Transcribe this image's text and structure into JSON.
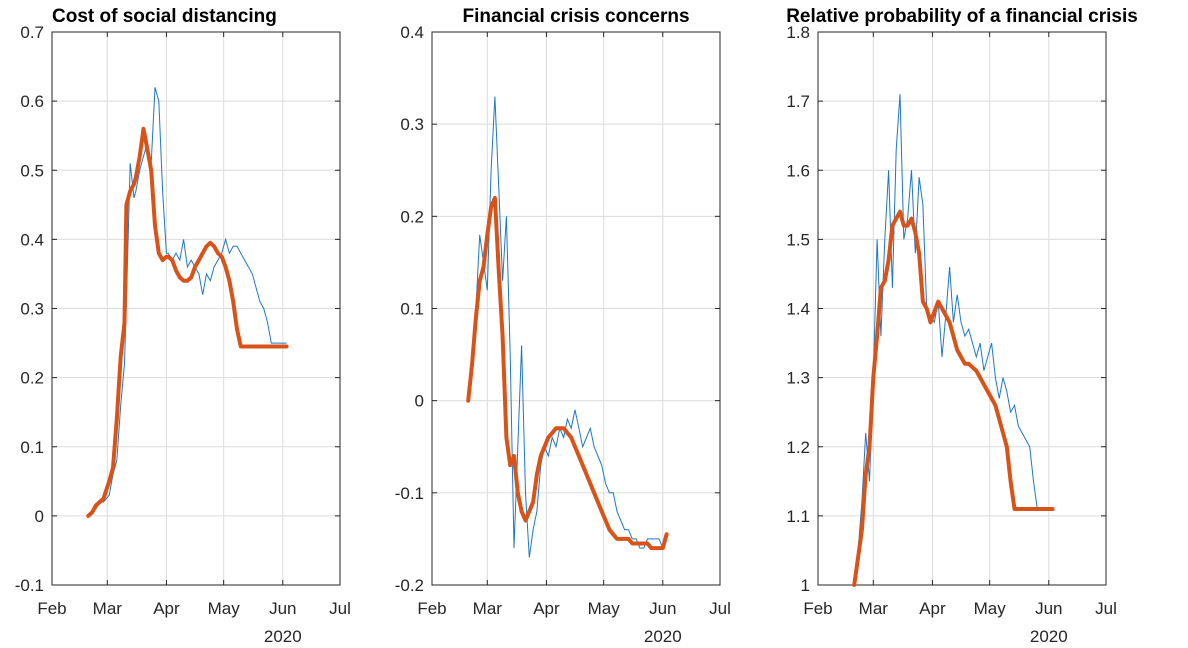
{
  "chart_data": [
    {
      "type": "line",
      "title": "Cost of social distancing",
      "xlabel": "",
      "ylabel": "",
      "x_ticks": [
        "Feb",
        "Mar",
        "Apr",
        "May",
        "Jun",
        "Jul"
      ],
      "x_year": "2020",
      "xlim": [
        "2020-02-01",
        "2020-07-01"
      ],
      "ylim": [
        -0.1,
        0.7
      ],
      "y_ticks": [
        "-0.1",
        "0",
        "0.1",
        "0.2",
        "0.3",
        "0.4",
        "0.5",
        "0.6",
        "0.7"
      ],
      "grid": true,
      "colors": {
        "raw": "#1f77c4",
        "smoothed": "#d95319"
      },
      "series": [
        {
          "role": "raw",
          "x": [
            "2020-02-20",
            "2020-02-22",
            "2020-02-24",
            "2020-02-26",
            "2020-02-28",
            "2020-03-02",
            "2020-03-04",
            "2020-03-06",
            "2020-03-08",
            "2020-03-10",
            "2020-03-11",
            "2020-03-13",
            "2020-03-15",
            "2020-03-16",
            "2020-03-18",
            "2020-03-20",
            "2020-03-22",
            "2020-03-24",
            "2020-03-26",
            "2020-03-28",
            "2020-03-30",
            "2020-04-01",
            "2020-04-02",
            "2020-04-04",
            "2020-04-06",
            "2020-04-08",
            "2020-04-10",
            "2020-04-12",
            "2020-04-14",
            "2020-04-16",
            "2020-04-18",
            "2020-04-20",
            "2020-04-22",
            "2020-04-24",
            "2020-04-26",
            "2020-04-28",
            "2020-04-30",
            "2020-05-02",
            "2020-05-04",
            "2020-05-06",
            "2020-05-08",
            "2020-05-10",
            "2020-05-12",
            "2020-05-14",
            "2020-05-16",
            "2020-05-18",
            "2020-05-20",
            "2020-05-22",
            "2020-05-24",
            "2020-05-26",
            "2020-05-28",
            "2020-05-30",
            "2020-06-01",
            "2020-06-03"
          ],
          "values": [
            0.0,
            0.005,
            0.01,
            0.02,
            0.02,
            0.03,
            0.06,
            0.08,
            0.16,
            0.22,
            0.31,
            0.51,
            0.46,
            0.47,
            0.5,
            0.52,
            0.54,
            0.51,
            0.62,
            0.6,
            0.47,
            0.38,
            0.38,
            0.37,
            0.38,
            0.37,
            0.4,
            0.36,
            0.37,
            0.36,
            0.35,
            0.32,
            0.35,
            0.34,
            0.36,
            0.37,
            0.38,
            0.4,
            0.38,
            0.39,
            0.39,
            0.38,
            0.37,
            0.36,
            0.35,
            0.33,
            0.31,
            0.3,
            0.28,
            0.25,
            0.25,
            0.25,
            0.25,
            0.25
          ]
        },
        {
          "role": "smoothed",
          "x": [
            "2020-02-20",
            "2020-02-22",
            "2020-02-24",
            "2020-02-26",
            "2020-02-28",
            "2020-03-02",
            "2020-03-04",
            "2020-03-06",
            "2020-03-08",
            "2020-03-10",
            "2020-03-11",
            "2020-03-13",
            "2020-03-15",
            "2020-03-16",
            "2020-03-18",
            "2020-03-20",
            "2020-03-22",
            "2020-03-24",
            "2020-03-26",
            "2020-03-28",
            "2020-03-30",
            "2020-04-01",
            "2020-04-02",
            "2020-04-04",
            "2020-04-06",
            "2020-04-08",
            "2020-04-10",
            "2020-04-12",
            "2020-04-14",
            "2020-04-16",
            "2020-04-18",
            "2020-04-20",
            "2020-04-22",
            "2020-04-24",
            "2020-04-26",
            "2020-04-28",
            "2020-04-30",
            "2020-05-02",
            "2020-05-04",
            "2020-05-06",
            "2020-05-08",
            "2020-05-10",
            "2020-05-12",
            "2020-05-14",
            "2020-05-16",
            "2020-05-18",
            "2020-05-20",
            "2020-05-22",
            "2020-05-24",
            "2020-05-26",
            "2020-05-28",
            "2020-05-30",
            "2020-06-01",
            "2020-06-03"
          ],
          "values": [
            0.0,
            0.005,
            0.015,
            0.02,
            0.025,
            0.05,
            0.07,
            0.14,
            0.23,
            0.28,
            0.45,
            0.47,
            0.48,
            0.49,
            0.52,
            0.56,
            0.53,
            0.5,
            0.42,
            0.38,
            0.37,
            0.375,
            0.375,
            0.37,
            0.355,
            0.345,
            0.34,
            0.34,
            0.345,
            0.36,
            0.37,
            0.38,
            0.39,
            0.395,
            0.39,
            0.38,
            0.375,
            0.36,
            0.34,
            0.31,
            0.27,
            0.245,
            0.245,
            0.245,
            0.245,
            0.245,
            0.245,
            0.245,
            0.245,
            0.245,
            0.245,
            0.245,
            0.245,
            0.245
          ]
        }
      ]
    },
    {
      "type": "line",
      "title": "Financial crisis concerns",
      "xlabel": "",
      "ylabel": "",
      "x_ticks": [
        "Feb",
        "Mar",
        "Apr",
        "May",
        "Jun",
        "Jul"
      ],
      "x_year": "2020",
      "xlim": [
        "2020-02-01",
        "2020-07-01"
      ],
      "ylim": [
        -0.2,
        0.4
      ],
      "y_ticks": [
        "-0.2",
        "-0.1",
        "0",
        "0.1",
        "0.2",
        "0.3",
        "0.4"
      ],
      "grid": true,
      "colors": {
        "raw": "#1f77c4",
        "smoothed": "#d95319"
      },
      "series": [
        {
          "role": "raw",
          "x": [
            "2020-02-20",
            "2020-02-22",
            "2020-02-24",
            "2020-02-26",
            "2020-02-28",
            "2020-03-01",
            "2020-03-03",
            "2020-03-05",
            "2020-03-07",
            "2020-03-09",
            "2020-03-11",
            "2020-03-13",
            "2020-03-15",
            "2020-03-17",
            "2020-03-19",
            "2020-03-21",
            "2020-03-23",
            "2020-03-25",
            "2020-03-27",
            "2020-03-29",
            "2020-03-31",
            "2020-04-02",
            "2020-04-04",
            "2020-04-06",
            "2020-04-08",
            "2020-04-10",
            "2020-04-12",
            "2020-04-14",
            "2020-04-16",
            "2020-04-18",
            "2020-04-20",
            "2020-04-22",
            "2020-04-24",
            "2020-04-26",
            "2020-04-28",
            "2020-04-30",
            "2020-05-02",
            "2020-05-04",
            "2020-05-06",
            "2020-05-08",
            "2020-05-10",
            "2020-05-12",
            "2020-05-14",
            "2020-05-16",
            "2020-05-18",
            "2020-05-20",
            "2020-05-22",
            "2020-05-24",
            "2020-05-26",
            "2020-05-28",
            "2020-05-30",
            "2020-06-01",
            "2020-06-03"
          ],
          "values": [
            0.0,
            0.05,
            0.1,
            0.18,
            0.15,
            0.12,
            0.25,
            0.33,
            0.23,
            0.13,
            0.2,
            0.05,
            -0.16,
            -0.05,
            0.06,
            -0.1,
            -0.17,
            -0.14,
            -0.12,
            -0.07,
            -0.05,
            -0.06,
            -0.04,
            -0.05,
            -0.03,
            -0.04,
            -0.02,
            -0.03,
            -0.01,
            -0.03,
            -0.05,
            -0.04,
            -0.03,
            -0.05,
            -0.06,
            -0.07,
            -0.09,
            -0.1,
            -0.1,
            -0.12,
            -0.13,
            -0.14,
            -0.14,
            -0.15,
            -0.15,
            -0.16,
            -0.16,
            -0.15,
            -0.15,
            -0.15,
            -0.15,
            -0.16,
            -0.15
          ]
        },
        {
          "role": "smoothed",
          "x": [
            "2020-02-20",
            "2020-02-22",
            "2020-02-24",
            "2020-02-26",
            "2020-02-28",
            "2020-03-01",
            "2020-03-03",
            "2020-03-05",
            "2020-03-07",
            "2020-03-09",
            "2020-03-11",
            "2020-03-13",
            "2020-03-15",
            "2020-03-17",
            "2020-03-19",
            "2020-03-21",
            "2020-03-23",
            "2020-03-25",
            "2020-03-27",
            "2020-03-29",
            "2020-03-31",
            "2020-04-02",
            "2020-04-04",
            "2020-04-06",
            "2020-04-08",
            "2020-04-10",
            "2020-04-12",
            "2020-04-14",
            "2020-04-16",
            "2020-04-18",
            "2020-04-20",
            "2020-04-22",
            "2020-04-24",
            "2020-04-26",
            "2020-04-28",
            "2020-04-30",
            "2020-05-02",
            "2020-05-04",
            "2020-05-06",
            "2020-05-08",
            "2020-05-10",
            "2020-05-12",
            "2020-05-14",
            "2020-05-16",
            "2020-05-18",
            "2020-05-20",
            "2020-05-22",
            "2020-05-24",
            "2020-05-26",
            "2020-05-28",
            "2020-05-30",
            "2020-06-01",
            "2020-06-03"
          ],
          "values": [
            0.0,
            0.04,
            0.09,
            0.13,
            0.145,
            0.18,
            0.21,
            0.22,
            0.14,
            0.07,
            -0.04,
            -0.07,
            -0.06,
            -0.1,
            -0.12,
            -0.13,
            -0.12,
            -0.11,
            -0.08,
            -0.06,
            -0.05,
            -0.04,
            -0.035,
            -0.03,
            -0.03,
            -0.03,
            -0.035,
            -0.04,
            -0.05,
            -0.06,
            -0.07,
            -0.08,
            -0.09,
            -0.1,
            -0.11,
            -0.12,
            -0.13,
            -0.14,
            -0.145,
            -0.15,
            -0.15,
            -0.15,
            -0.15,
            -0.155,
            -0.155,
            -0.155,
            -0.155,
            -0.155,
            -0.16,
            -0.16,
            -0.16,
            -0.16,
            -0.145
          ]
        }
      ]
    },
    {
      "type": "line",
      "title": "Relative probability of a financial crisis",
      "xlabel": "",
      "ylabel": "",
      "x_ticks": [
        "Feb",
        "Mar",
        "Apr",
        "May",
        "Jun",
        "Jul"
      ],
      "x_year": "2020",
      "xlim": [
        "2020-02-01",
        "2020-07-01"
      ],
      "ylim": [
        1.0,
        1.8
      ],
      "y_ticks": [
        "1",
        "1.1",
        "1.2",
        "1.3",
        "1.4",
        "1.5",
        "1.6",
        "1.7",
        "1.8"
      ],
      "grid": true,
      "colors": {
        "raw": "#1f77c4",
        "smoothed": "#d95319"
      },
      "series": [
        {
          "role": "raw",
          "x": [
            "2020-02-20",
            "2020-02-22",
            "2020-02-24",
            "2020-02-26",
            "2020-02-28",
            "2020-03-01",
            "2020-03-03",
            "2020-03-05",
            "2020-03-07",
            "2020-03-09",
            "2020-03-11",
            "2020-03-13",
            "2020-03-15",
            "2020-03-17",
            "2020-03-19",
            "2020-03-21",
            "2020-03-23",
            "2020-03-25",
            "2020-03-27",
            "2020-03-29",
            "2020-03-31",
            "2020-04-02",
            "2020-04-04",
            "2020-04-06",
            "2020-04-08",
            "2020-04-10",
            "2020-04-12",
            "2020-04-14",
            "2020-04-16",
            "2020-04-18",
            "2020-04-20",
            "2020-04-22",
            "2020-04-24",
            "2020-04-26",
            "2020-04-28",
            "2020-04-30",
            "2020-05-02",
            "2020-05-04",
            "2020-05-06",
            "2020-05-08",
            "2020-05-10",
            "2020-05-12",
            "2020-05-14",
            "2020-05-16",
            "2020-05-18",
            "2020-05-20",
            "2020-05-22",
            "2020-05-24",
            "2020-05-26",
            "2020-05-28",
            "2020-05-30",
            "2020-06-01",
            "2020-06-03"
          ],
          "values": [
            1.0,
            1.05,
            1.12,
            1.22,
            1.15,
            1.3,
            1.5,
            1.36,
            1.5,
            1.6,
            1.43,
            1.63,
            1.71,
            1.5,
            1.53,
            1.6,
            1.48,
            1.59,
            1.55,
            1.4,
            1.39,
            1.38,
            1.41,
            1.33,
            1.39,
            1.46,
            1.38,
            1.42,
            1.38,
            1.36,
            1.37,
            1.35,
            1.33,
            1.35,
            1.31,
            1.33,
            1.35,
            1.3,
            1.27,
            1.3,
            1.28,
            1.25,
            1.26,
            1.23,
            1.22,
            1.21,
            1.2,
            1.15,
            1.11,
            1.11,
            1.11,
            1.11,
            1.11
          ]
        },
        {
          "role": "smoothed",
          "x": [
            "2020-02-20",
            "2020-02-22",
            "2020-02-24",
            "2020-02-26",
            "2020-02-28",
            "2020-03-01",
            "2020-03-03",
            "2020-03-05",
            "2020-03-07",
            "2020-03-09",
            "2020-03-11",
            "2020-03-13",
            "2020-03-15",
            "2020-03-17",
            "2020-03-19",
            "2020-03-21",
            "2020-03-23",
            "2020-03-25",
            "2020-03-27",
            "2020-03-29",
            "2020-03-31",
            "2020-04-02",
            "2020-04-04",
            "2020-04-06",
            "2020-04-08",
            "2020-04-10",
            "2020-04-12",
            "2020-04-14",
            "2020-04-16",
            "2020-04-18",
            "2020-04-20",
            "2020-04-22",
            "2020-04-24",
            "2020-04-26",
            "2020-04-28",
            "2020-04-30",
            "2020-05-02",
            "2020-05-04",
            "2020-05-06",
            "2020-05-08",
            "2020-05-10",
            "2020-05-12",
            "2020-05-14",
            "2020-05-16",
            "2020-05-18",
            "2020-05-20",
            "2020-05-22",
            "2020-05-24",
            "2020-05-26",
            "2020-05-28",
            "2020-05-30",
            "2020-06-01",
            "2020-06-03"
          ],
          "values": [
            1.0,
            1.04,
            1.08,
            1.16,
            1.2,
            1.3,
            1.36,
            1.43,
            1.44,
            1.47,
            1.52,
            1.53,
            1.54,
            1.52,
            1.52,
            1.53,
            1.51,
            1.48,
            1.41,
            1.4,
            1.38,
            1.395,
            1.41,
            1.4,
            1.39,
            1.38,
            1.36,
            1.34,
            1.33,
            1.32,
            1.32,
            1.315,
            1.31,
            1.3,
            1.29,
            1.28,
            1.27,
            1.26,
            1.24,
            1.22,
            1.2,
            1.15,
            1.11,
            1.11,
            1.11,
            1.11,
            1.11,
            1.11,
            1.11,
            1.11,
            1.11,
            1.11,
            1.11
          ]
        }
      ]
    }
  ]
}
